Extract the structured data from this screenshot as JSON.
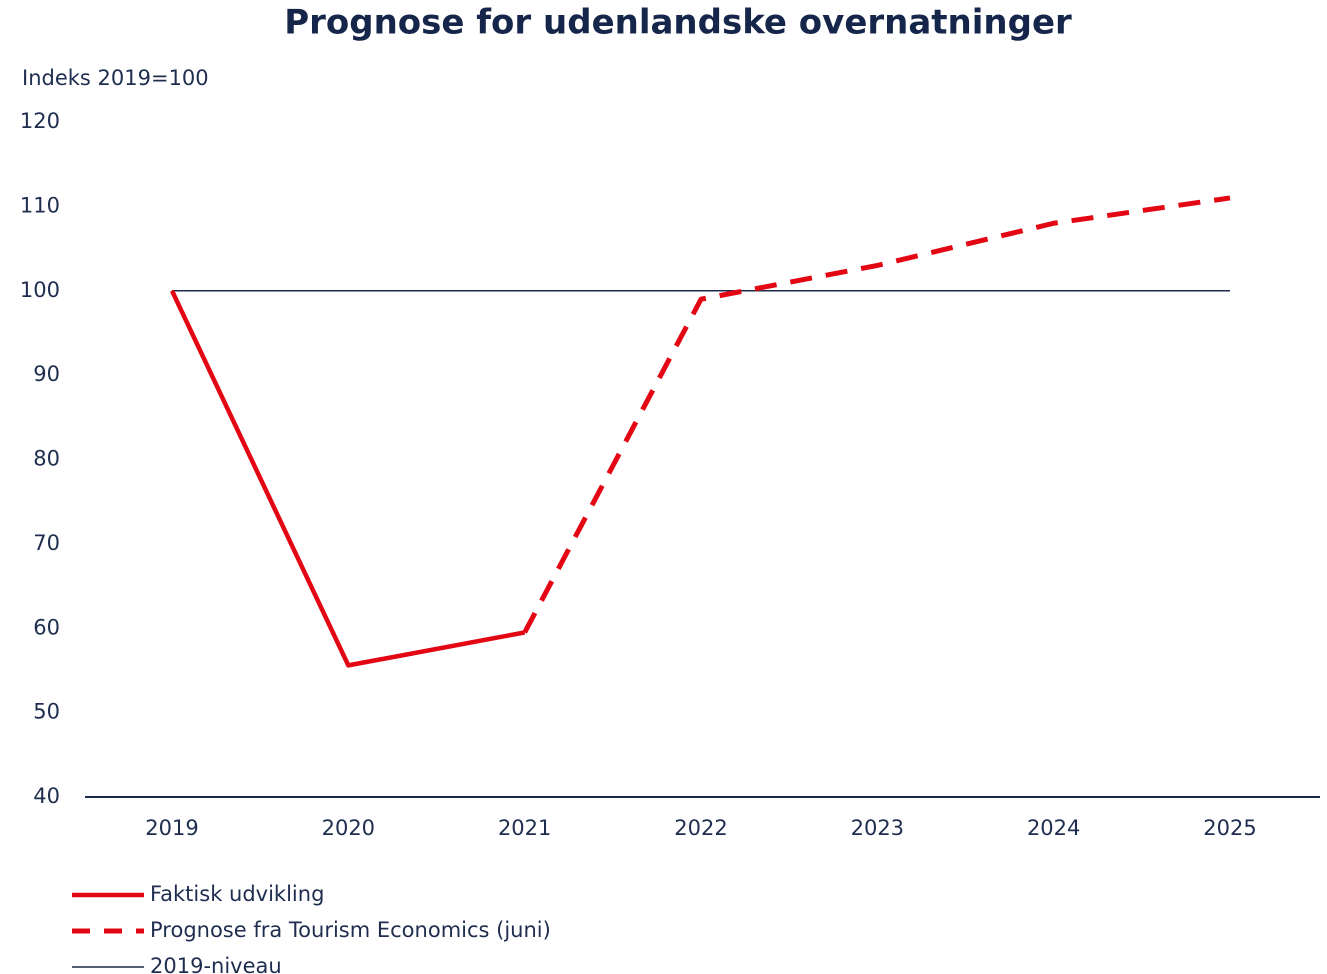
{
  "chart_data": {
    "type": "line",
    "title": "Prognose for udenlandske overnatninger",
    "y_label": "Indeks 2019=100",
    "categories": [
      "2019",
      "2020",
      "2021",
      "2022",
      "2023",
      "2024",
      "2025"
    ],
    "series": [
      {
        "name": "Faktisk udvikling",
        "color": "#e30613",
        "dash": "solid",
        "values": [
          100,
          55.6,
          59.5,
          null,
          null,
          null,
          null
        ]
      },
      {
        "name": "Prognose fra Tourism Economics (juni)",
        "color": "#e30613",
        "dash": "dashed",
        "values": [
          null,
          null,
          59.5,
          99,
          103,
          108,
          111
        ]
      },
      {
        "name": "2019-niveau",
        "color": "#1b2a4a",
        "dash": "thin",
        "values": [
          100,
          100,
          100,
          100,
          100,
          100,
          100
        ]
      }
    ],
    "ylim": [
      40,
      120
    ],
    "yticks": [
      40,
      50,
      60,
      70,
      80,
      90,
      100,
      110,
      120
    ],
    "grid": false
  }
}
